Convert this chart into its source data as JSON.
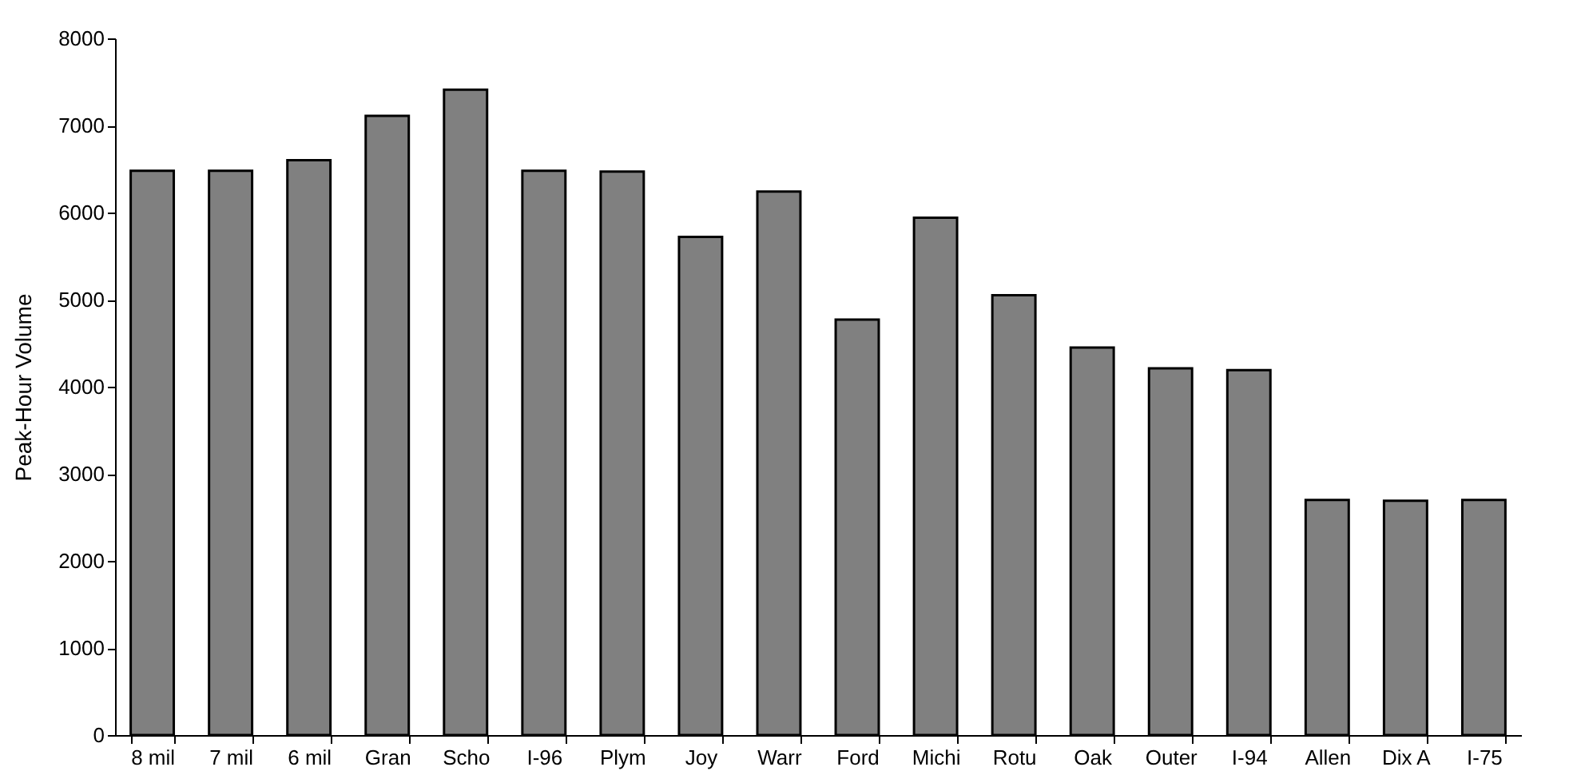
{
  "chart_data": {
    "type": "bar",
    "ylabel": "Peak-Hour Volume",
    "categories": [
      "8 mil",
      "7 mil",
      "6 mil",
      "Gran",
      "Scho",
      "I-96",
      "Plym",
      "Joy",
      "Warr",
      "Ford",
      "Michi",
      "Rotu",
      "Oak",
      "Outer",
      "I-94",
      "Allen",
      "Dix A",
      "I-75"
    ],
    "values": [
      6480,
      6480,
      6600,
      7110,
      7410,
      6480,
      6470,
      5720,
      6240,
      4770,
      5940,
      5050,
      4450,
      4210,
      4190,
      2700,
      2690,
      2700
    ],
    "color": "#808080",
    "ylim": [
      0,
      8000
    ],
    "yticks": [
      0,
      1000,
      2000,
      3000,
      4000,
      5000,
      6000,
      7000,
      8000
    ],
    "grid": false
  }
}
